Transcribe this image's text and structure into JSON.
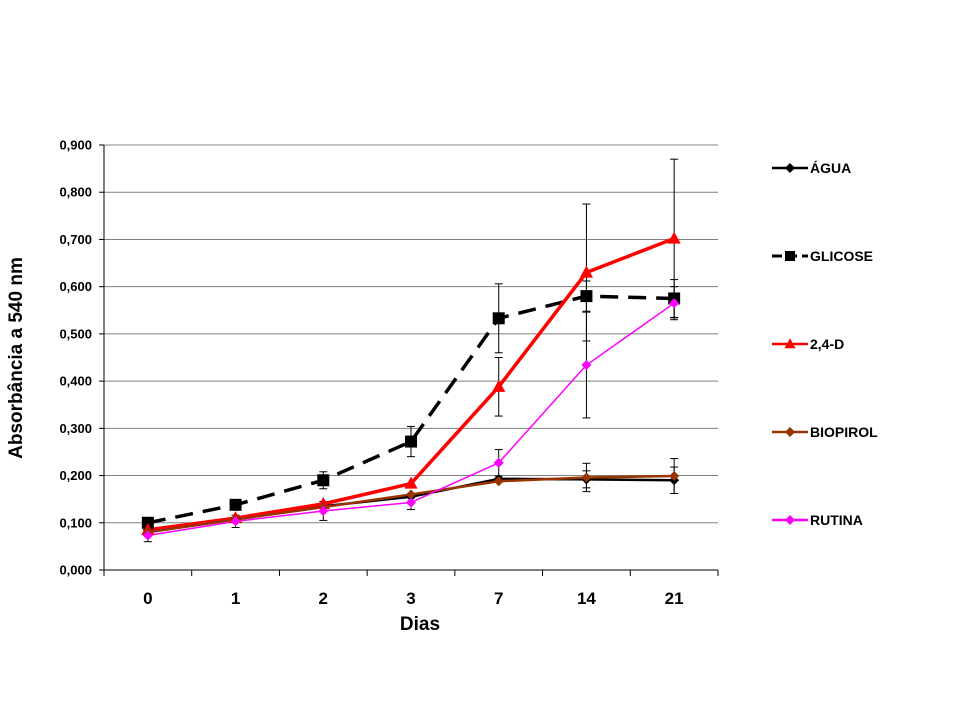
{
  "chart_data": {
    "type": "line",
    "title": "",
    "xlabel": "Dias",
    "ylabel": "Absorbância a 540 nm",
    "categories": [
      "0",
      "1",
      "2",
      "3",
      "7",
      "14",
      "21"
    ],
    "ylim": [
      0,
      0.9
    ],
    "yticks": [
      0,
      0.1,
      0.2,
      0.3,
      0.4,
      0.5,
      0.6,
      0.7,
      0.8,
      0.9
    ],
    "ytick_labels": [
      "0,000",
      "0,100",
      "0,200",
      "0,300",
      "0,400",
      "0,500",
      "0,600",
      "0,700",
      "0,800",
      "0,900"
    ],
    "grid": "horizontal",
    "legend_position": "right",
    "series": [
      {
        "name": "ÁGUA",
        "color": "#000000",
        "marker": "diamond",
        "dash": "solid",
        "values": [
          0.085,
          0.108,
          0.135,
          0.155,
          0.193,
          0.192,
          0.19
        ],
        "errors": [
          0,
          0,
          0,
          0,
          0,
          0.018,
          0.028
        ]
      },
      {
        "name": "GLICOSE",
        "color": "#000000",
        "marker": "square",
        "dash": "dashed",
        "values": [
          0.1,
          0.138,
          0.19,
          0.272,
          0.533,
          0.58,
          0.575
        ],
        "errors": [
          0,
          0,
          0.018,
          0.032,
          0.073,
          0.032,
          0.04
        ]
      },
      {
        "name": "2,4-D",
        "color": "#ff0000",
        "marker": "triangle",
        "dash": "solid",
        "values": [
          0.085,
          0.11,
          0.14,
          0.183,
          0.388,
          0.63,
          0.702
        ],
        "errors": [
          0,
          0,
          0,
          0,
          0.062,
          0.145,
          0.168
        ]
      },
      {
        "name": "BIOPIROL",
        "color": "#993300",
        "marker": "diamond",
        "dash": "solid",
        "values": [
          0.08,
          0.107,
          0.133,
          0.16,
          0.188,
          0.196,
          0.199
        ],
        "errors": [
          0,
          0,
          0,
          0,
          0,
          0.03,
          0.037
        ]
      },
      {
        "name": "RUTINA",
        "color": "#ff00ff",
        "marker": "diamond",
        "dash": "solid",
        "values": [
          0.073,
          0.103,
          0.125,
          0.143,
          0.227,
          0.434,
          0.565
        ],
        "errors": [
          0.013,
          0.013,
          0.02,
          0.015,
          0.028,
          0.112,
          0.035
        ]
      }
    ]
  }
}
